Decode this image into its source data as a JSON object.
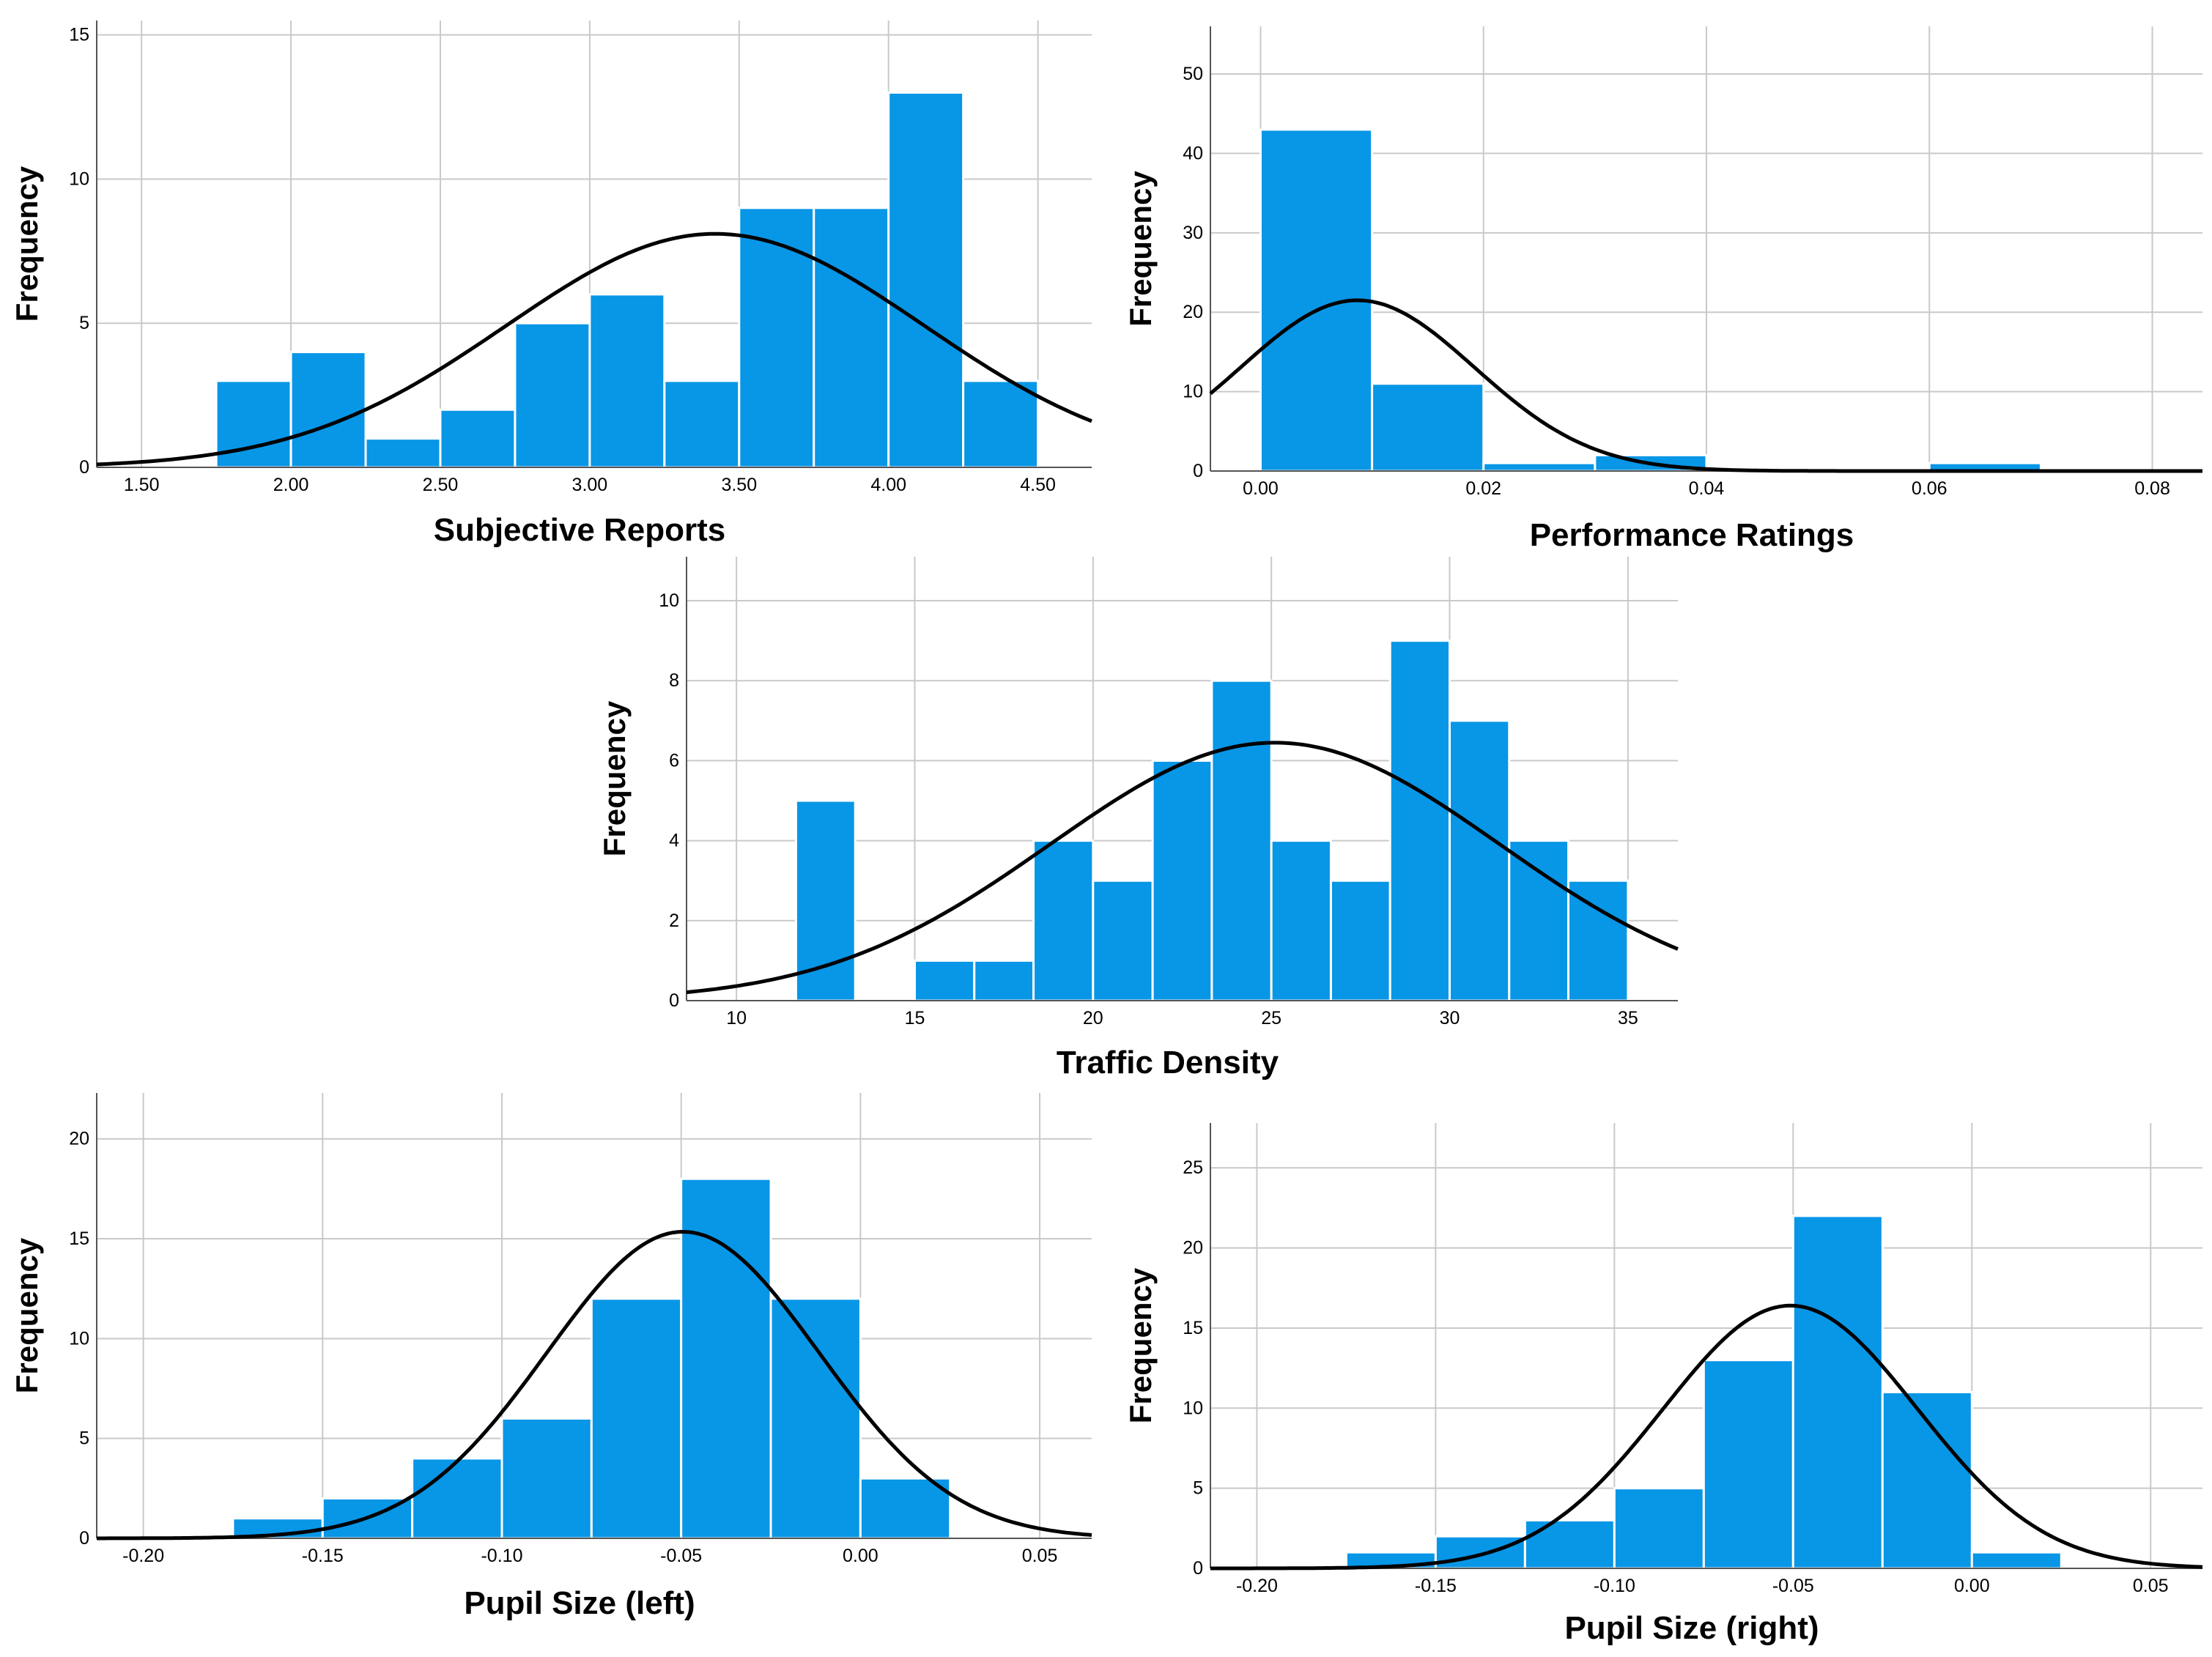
{
  "colors": {
    "bar": "#0896E6",
    "curve": "#000000",
    "grid": "#C9C9C9",
    "axis": "#555555"
  },
  "chart_data": [
    {
      "type": "bar",
      "title": "",
      "xlabel": "Subjective Reports",
      "ylabel": "Frequency",
      "xlim": [
        1.35,
        4.68
      ],
      "ylim": [
        0,
        15.5
      ],
      "xticks": [
        1.5,
        2.0,
        2.5,
        3.0,
        3.5,
        4.0,
        4.5
      ],
      "xtick_labels": [
        "1.50",
        "2.00",
        "2.50",
        "3.00",
        "3.50",
        "4.00",
        "4.50"
      ],
      "yticks": [
        0,
        5,
        10,
        15
      ],
      "ytick_labels": [
        "0",
        "5",
        "10",
        "15"
      ],
      "bins": [
        {
          "start": 1.75,
          "end": 2.0,
          "count": 3
        },
        {
          "start": 2.0,
          "end": 2.25,
          "count": 4
        },
        {
          "start": 2.25,
          "end": 2.5,
          "count": 1
        },
        {
          "start": 2.5,
          "end": 2.75,
          "count": 2
        },
        {
          "start": 2.75,
          "end": 3.0,
          "count": 5
        },
        {
          "start": 3.0,
          "end": 3.25,
          "count": 6
        },
        {
          "start": 3.25,
          "end": 3.5,
          "count": 3
        },
        {
          "start": 3.5,
          "end": 3.75,
          "count": 9
        },
        {
          "start": 3.75,
          "end": 4.0,
          "count": 9
        },
        {
          "start": 4.0,
          "end": 4.25,
          "count": 13
        },
        {
          "start": 4.25,
          "end": 4.5,
          "count": 3
        }
      ],
      "normal_curve": {
        "mean": 3.42,
        "sd": 0.7,
        "peak": 8.1
      },
      "grid": true
    },
    {
      "type": "bar",
      "title": "",
      "xlabel": "Performance Ratings",
      "ylabel": "Frequency",
      "xlim": [
        -0.0045,
        0.0845
      ],
      "ylim": [
        0,
        56
      ],
      "xticks": [
        0.0,
        0.02,
        0.04,
        0.06,
        0.08
      ],
      "xtick_labels": [
        "0.00",
        "0.02",
        "0.04",
        "0.06",
        "0.08"
      ],
      "yticks": [
        0,
        10,
        20,
        30,
        40,
        50
      ],
      "ytick_labels": [
        "0",
        "10",
        "20",
        "30",
        "40",
        "50"
      ],
      "bins": [
        {
          "start": 0.0,
          "end": 0.01,
          "count": 43
        },
        {
          "start": 0.01,
          "end": 0.02,
          "count": 11
        },
        {
          "start": 0.02,
          "end": 0.03,
          "count": 1
        },
        {
          "start": 0.03,
          "end": 0.04,
          "count": 2
        },
        {
          "start": 0.04,
          "end": 0.05,
          "count": 0
        },
        {
          "start": 0.05,
          "end": 0.06,
          "count": 0
        },
        {
          "start": 0.06,
          "end": 0.07,
          "count": 1
        }
      ],
      "normal_curve": {
        "mean": 0.0087,
        "sd": 0.0105,
        "peak": 21.5
      },
      "grid": true
    },
    {
      "type": "bar",
      "title": "",
      "xlabel": "Traffic Density",
      "ylabel": "Frequency",
      "xlim": [
        8.6,
        36.4
      ],
      "ylim": [
        0,
        11.1
      ],
      "xticks": [
        10,
        15,
        20,
        25,
        30,
        35
      ],
      "xtick_labels": [
        "10",
        "15",
        "20",
        "25",
        "30",
        "35"
      ],
      "yticks": [
        0,
        2,
        4,
        6,
        8,
        10
      ],
      "ytick_labels": [
        "0",
        "2",
        "4",
        "6",
        "8",
        "10"
      ],
      "bins": [
        {
          "start": 11.67,
          "end": 13.33,
          "count": 5
        },
        {
          "start": 13.33,
          "end": 15.0,
          "count": 0
        },
        {
          "start": 15.0,
          "end": 16.67,
          "count": 1
        },
        {
          "start": 16.67,
          "end": 18.33,
          "count": 1
        },
        {
          "start": 18.33,
          "end": 20.0,
          "count": 4
        },
        {
          "start": 20.0,
          "end": 21.67,
          "count": 3
        },
        {
          "start": 21.67,
          "end": 23.33,
          "count": 6
        },
        {
          "start": 23.33,
          "end": 25.0,
          "count": 8
        },
        {
          "start": 25.0,
          "end": 26.67,
          "count": 4
        },
        {
          "start": 26.67,
          "end": 28.33,
          "count": 3
        },
        {
          "start": 28.33,
          "end": 30.0,
          "count": 9
        },
        {
          "start": 30.0,
          "end": 31.67,
          "count": 7
        },
        {
          "start": 31.67,
          "end": 33.33,
          "count": 4
        },
        {
          "start": 33.33,
          "end": 35.0,
          "count": 3
        }
      ],
      "normal_curve": {
        "mean": 25.1,
        "sd": 6.3,
        "peak": 6.45
      },
      "grid": true
    },
    {
      "type": "bar",
      "title": "",
      "xlabel": "Pupil Size (left)",
      "ylabel": "Frequency",
      "xlim": [
        -0.213,
        0.0645
      ],
      "ylim": [
        0,
        22.3
      ],
      "xticks": [
        -0.2,
        -0.15,
        -0.1,
        -0.05,
        0.0,
        0.05
      ],
      "xtick_labels": [
        "-0.20",
        "-0.15",
        "-0.10",
        "-0.05",
        "0.00",
        "0.05"
      ],
      "yticks": [
        0,
        5,
        10,
        15,
        20
      ],
      "ytick_labels": [
        "0",
        "5",
        "10",
        "15",
        "20"
      ],
      "bins": [
        {
          "start": -0.175,
          "end": -0.15,
          "count": 1
        },
        {
          "start": -0.15,
          "end": -0.125,
          "count": 2
        },
        {
          "start": -0.125,
          "end": -0.1,
          "count": 4
        },
        {
          "start": -0.1,
          "end": -0.075,
          "count": 6
        },
        {
          "start": -0.075,
          "end": -0.05,
          "count": 12
        },
        {
          "start": -0.05,
          "end": -0.025,
          "count": 18
        },
        {
          "start": -0.025,
          "end": 0.0,
          "count": 12
        },
        {
          "start": 0.0,
          "end": 0.025,
          "count": 3
        }
      ],
      "normal_curve": {
        "mean": -0.0495,
        "sd": 0.0379,
        "peak": 15.35
      },
      "grid": true
    },
    {
      "type": "bar",
      "title": "",
      "xlabel": "Pupil Size (right)",
      "ylabel": "Frequency",
      "xlim": [
        -0.213,
        0.0645
      ],
      "ylim": [
        0,
        27.8
      ],
      "xticks": [
        -0.2,
        -0.15,
        -0.1,
        -0.05,
        0.0,
        0.05
      ],
      "xtick_labels": [
        "-0.20",
        "-0.15",
        "-0.10",
        "-0.05",
        "0.00",
        "0.05"
      ],
      "yticks": [
        0,
        5,
        10,
        15,
        20,
        25
      ],
      "ytick_labels": [
        "0",
        "5",
        "10",
        "15",
        "20",
        "25"
      ],
      "bins": [
        {
          "start": -0.175,
          "end": -0.15,
          "count": 1
        },
        {
          "start": -0.15,
          "end": -0.125,
          "count": 2
        },
        {
          "start": -0.125,
          "end": -0.1,
          "count": 3
        },
        {
          "start": -0.1,
          "end": -0.075,
          "count": 5
        },
        {
          "start": -0.075,
          "end": -0.05,
          "count": 13
        },
        {
          "start": -0.05,
          "end": -0.025,
          "count": 22
        },
        {
          "start": -0.025,
          "end": 0.0,
          "count": 11
        },
        {
          "start": 0.0,
          "end": 0.025,
          "count": 1
        }
      ],
      "normal_curve": {
        "mean": -0.0508,
        "sd": 0.0356,
        "peak": 16.4
      },
      "grid": true
    }
  ]
}
